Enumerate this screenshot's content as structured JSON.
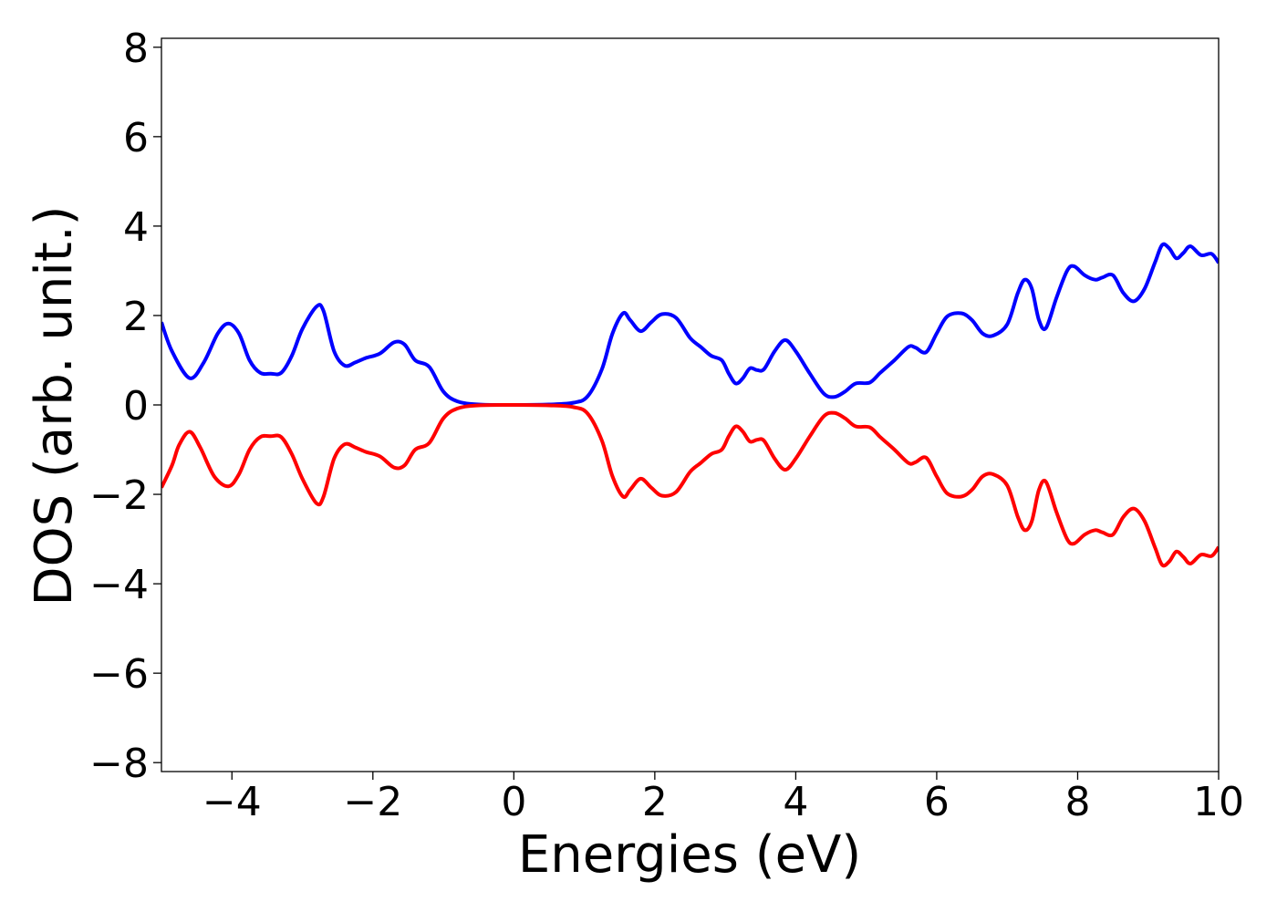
{
  "chart_data": {
    "type": "line",
    "title": "",
    "xlabel": "Energies (eV)",
    "ylabel": "DOS (arb. unit.)",
    "xlim": [
      -5,
      10
    ],
    "ylim": [
      -8.2,
      8.2
    ],
    "x_ticks": [
      -4,
      -2,
      0,
      2,
      4,
      6,
      8,
      10
    ],
    "x_tick_labels": [
      "−4",
      "−2",
      "0",
      "2",
      "4",
      "6",
      "8",
      "10"
    ],
    "y_ticks": [
      8,
      6,
      4,
      2,
      0,
      -2,
      -4,
      -6,
      -8
    ],
    "y_tick_labels": [
      "8",
      "6",
      "4",
      "2",
      "0",
      "−2",
      "−4",
      "−6",
      "−8"
    ],
    "grid": false,
    "legend": "none",
    "series": [
      {
        "color": "#0000ff",
        "points": [
          [
            -5.0,
            1.85
          ],
          [
            -4.85,
            1.2
          ],
          [
            -4.6,
            0.6
          ],
          [
            -4.4,
            0.95
          ],
          [
            -4.2,
            1.6
          ],
          [
            -4.05,
            1.82
          ],
          [
            -3.9,
            1.6
          ],
          [
            -3.75,
            1.0
          ],
          [
            -3.6,
            0.72
          ],
          [
            -3.45,
            0.7
          ],
          [
            -3.3,
            0.72
          ],
          [
            -3.15,
            1.1
          ],
          [
            -3.0,
            1.7
          ],
          [
            -2.8,
            2.2
          ],
          [
            -2.7,
            2.1
          ],
          [
            -2.55,
            1.2
          ],
          [
            -2.4,
            0.88
          ],
          [
            -2.25,
            0.95
          ],
          [
            -2.1,
            1.05
          ],
          [
            -1.9,
            1.15
          ],
          [
            -1.7,
            1.4
          ],
          [
            -1.55,
            1.35
          ],
          [
            -1.4,
            1.0
          ],
          [
            -1.2,
            0.85
          ],
          [
            -1.0,
            0.3
          ],
          [
            -0.8,
            0.08
          ],
          [
            -0.5,
            0.01
          ],
          [
            0.0,
            0.0
          ],
          [
            0.5,
            0.01
          ],
          [
            0.85,
            0.05
          ],
          [
            1.05,
            0.2
          ],
          [
            1.25,
            0.8
          ],
          [
            1.4,
            1.6
          ],
          [
            1.55,
            2.05
          ],
          [
            1.65,
            1.9
          ],
          [
            1.8,
            1.65
          ],
          [
            1.95,
            1.85
          ],
          [
            2.1,
            2.03
          ],
          [
            2.3,
            1.95
          ],
          [
            2.5,
            1.5
          ],
          [
            2.65,
            1.3
          ],
          [
            2.8,
            1.1
          ],
          [
            2.95,
            1.0
          ],
          [
            3.05,
            0.7
          ],
          [
            3.15,
            0.48
          ],
          [
            3.25,
            0.6
          ],
          [
            3.35,
            0.82
          ],
          [
            3.45,
            0.78
          ],
          [
            3.55,
            0.8
          ],
          [
            3.7,
            1.2
          ],
          [
            3.85,
            1.45
          ],
          [
            4.0,
            1.2
          ],
          [
            4.2,
            0.7
          ],
          [
            4.4,
            0.25
          ],
          [
            4.55,
            0.18
          ],
          [
            4.7,
            0.3
          ],
          [
            4.85,
            0.48
          ],
          [
            5.05,
            0.5
          ],
          [
            5.2,
            0.72
          ],
          [
            5.4,
            1.0
          ],
          [
            5.6,
            1.3
          ],
          [
            5.7,
            1.28
          ],
          [
            5.85,
            1.18
          ],
          [
            6.0,
            1.6
          ],
          [
            6.15,
            1.98
          ],
          [
            6.35,
            2.05
          ],
          [
            6.5,
            1.9
          ],
          [
            6.65,
            1.6
          ],
          [
            6.8,
            1.55
          ],
          [
            7.0,
            1.8
          ],
          [
            7.15,
            2.5
          ],
          [
            7.25,
            2.8
          ],
          [
            7.35,
            2.6
          ],
          [
            7.45,
            1.9
          ],
          [
            7.55,
            1.72
          ],
          [
            7.7,
            2.4
          ],
          [
            7.85,
            3.0
          ],
          [
            7.95,
            3.1
          ],
          [
            8.1,
            2.9
          ],
          [
            8.25,
            2.8
          ],
          [
            8.35,
            2.85
          ],
          [
            8.5,
            2.9
          ],
          [
            8.65,
            2.5
          ],
          [
            8.8,
            2.32
          ],
          [
            8.95,
            2.6
          ],
          [
            9.1,
            3.2
          ],
          [
            9.2,
            3.58
          ],
          [
            9.3,
            3.5
          ],
          [
            9.4,
            3.28
          ],
          [
            9.5,
            3.4
          ],
          [
            9.6,
            3.55
          ],
          [
            9.75,
            3.35
          ],
          [
            9.9,
            3.38
          ],
          [
            10.0,
            3.18
          ]
        ]
      },
      {
        "color": "#ff0000",
        "points": [
          [
            -5.0,
            -1.85
          ],
          [
            -4.85,
            -1.35
          ],
          [
            -4.75,
            -0.9
          ],
          [
            -4.6,
            -0.6
          ],
          [
            -4.45,
            -0.95
          ],
          [
            -4.25,
            -1.6
          ],
          [
            -4.05,
            -1.82
          ],
          [
            -3.9,
            -1.55
          ],
          [
            -3.75,
            -1.0
          ],
          [
            -3.6,
            -0.72
          ],
          [
            -3.45,
            -0.7
          ],
          [
            -3.3,
            -0.72
          ],
          [
            -3.15,
            -1.1
          ],
          [
            -3.0,
            -1.65
          ],
          [
            -2.8,
            -2.2
          ],
          [
            -2.7,
            -2.05
          ],
          [
            -2.55,
            -1.2
          ],
          [
            -2.4,
            -0.88
          ],
          [
            -2.25,
            -0.95
          ],
          [
            -2.1,
            -1.05
          ],
          [
            -1.9,
            -1.15
          ],
          [
            -1.7,
            -1.4
          ],
          [
            -1.55,
            -1.35
          ],
          [
            -1.4,
            -1.0
          ],
          [
            -1.2,
            -0.85
          ],
          [
            -1.0,
            -0.3
          ],
          [
            -0.8,
            -0.08
          ],
          [
            -0.5,
            -0.01
          ],
          [
            0.0,
            0.0
          ],
          [
            0.5,
            -0.01
          ],
          [
            0.85,
            -0.05
          ],
          [
            1.05,
            -0.2
          ],
          [
            1.25,
            -0.8
          ],
          [
            1.4,
            -1.6
          ],
          [
            1.55,
            -2.05
          ],
          [
            1.65,
            -1.9
          ],
          [
            1.8,
            -1.65
          ],
          [
            1.95,
            -1.85
          ],
          [
            2.1,
            -2.03
          ],
          [
            2.3,
            -1.95
          ],
          [
            2.5,
            -1.5
          ],
          [
            2.65,
            -1.3
          ],
          [
            2.8,
            -1.1
          ],
          [
            2.95,
            -1.0
          ],
          [
            3.05,
            -0.7
          ],
          [
            3.15,
            -0.48
          ],
          [
            3.25,
            -0.6
          ],
          [
            3.35,
            -0.82
          ],
          [
            3.45,
            -0.78
          ],
          [
            3.55,
            -0.8
          ],
          [
            3.7,
            -1.2
          ],
          [
            3.85,
            -1.45
          ],
          [
            4.0,
            -1.2
          ],
          [
            4.2,
            -0.7
          ],
          [
            4.4,
            -0.25
          ],
          [
            4.55,
            -0.18
          ],
          [
            4.7,
            -0.3
          ],
          [
            4.85,
            -0.48
          ],
          [
            5.05,
            -0.5
          ],
          [
            5.2,
            -0.72
          ],
          [
            5.4,
            -1.0
          ],
          [
            5.6,
            -1.3
          ],
          [
            5.7,
            -1.28
          ],
          [
            5.85,
            -1.18
          ],
          [
            6.0,
            -1.6
          ],
          [
            6.15,
            -1.98
          ],
          [
            6.35,
            -2.05
          ],
          [
            6.5,
            -1.9
          ],
          [
            6.65,
            -1.6
          ],
          [
            6.8,
            -1.55
          ],
          [
            7.0,
            -1.8
          ],
          [
            7.15,
            -2.5
          ],
          [
            7.25,
            -2.8
          ],
          [
            7.35,
            -2.6
          ],
          [
            7.45,
            -1.9
          ],
          [
            7.55,
            -1.72
          ],
          [
            7.7,
            -2.4
          ],
          [
            7.85,
            -3.0
          ],
          [
            7.95,
            -3.1
          ],
          [
            8.1,
            -2.9
          ],
          [
            8.25,
            -2.8
          ],
          [
            8.35,
            -2.85
          ],
          [
            8.5,
            -2.9
          ],
          [
            8.65,
            -2.5
          ],
          [
            8.8,
            -2.32
          ],
          [
            8.95,
            -2.6
          ],
          [
            9.1,
            -3.2
          ],
          [
            9.2,
            -3.58
          ],
          [
            9.3,
            -3.5
          ],
          [
            9.4,
            -3.28
          ],
          [
            9.5,
            -3.4
          ],
          [
            9.6,
            -3.55
          ],
          [
            9.75,
            -3.35
          ],
          [
            9.9,
            -3.38
          ],
          [
            10.0,
            -3.18
          ]
        ]
      }
    ]
  }
}
